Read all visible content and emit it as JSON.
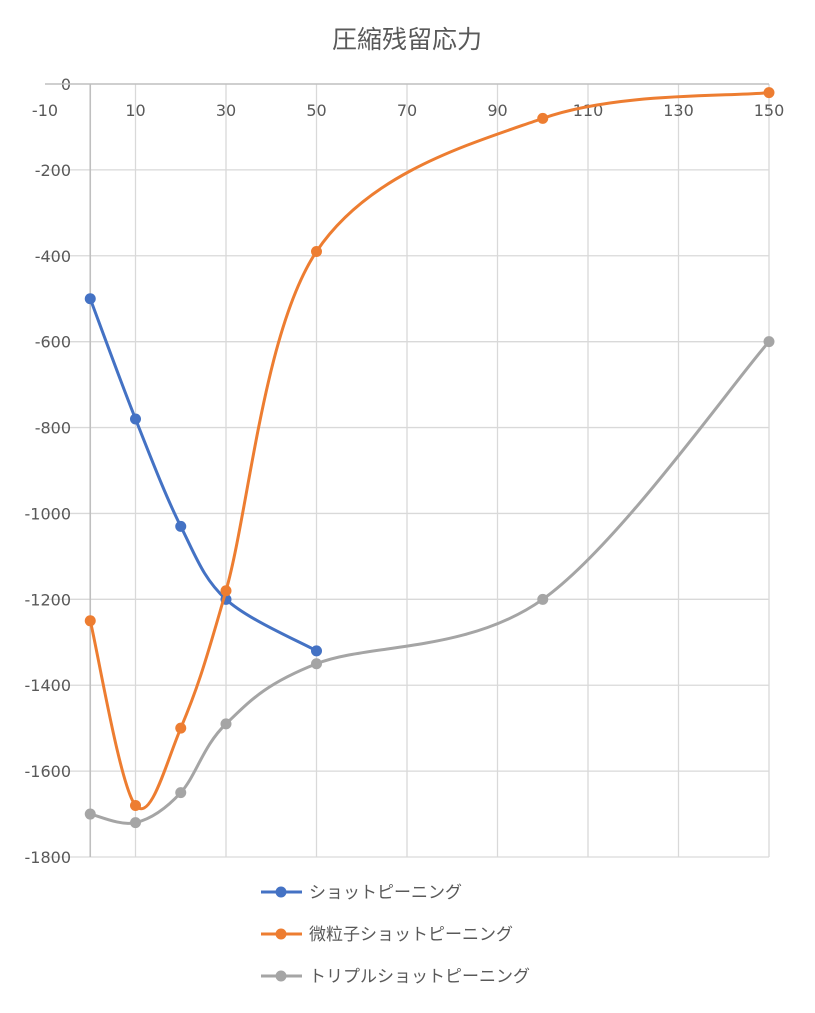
{
  "chart_data": {
    "type": "line",
    "title": "圧縮残留応力",
    "xlabel": "",
    "ylabel": "",
    "x_ticks": [
      -10,
      10,
      30,
      50,
      70,
      90,
      110,
      130,
      150
    ],
    "xlim": [
      -10,
      150
    ],
    "y_ticks": [
      0,
      -200,
      -400,
      -600,
      -800,
      -1000,
      -1200,
      -1400,
      -1600,
      -1800
    ],
    "ylim": [
      -1800,
      0
    ],
    "grid": true,
    "smooth": true,
    "legend_position": "bottom",
    "series": [
      {
        "name": "ショットピーニング",
        "color": "#4472c4",
        "x": [
          0,
          10,
          20,
          30,
          50
        ],
        "y": [
          -500,
          -780,
          -1030,
          -1200,
          -1320
        ]
      },
      {
        "name": "微粒子ショットピーニング",
        "color": "#ed7d31",
        "x": [
          0,
          10,
          20,
          30,
          50,
          100,
          150
        ],
        "y": [
          -1250,
          -1680,
          -1500,
          -1180,
          -390,
          -80,
          -20
        ]
      },
      {
        "name": "トリプルショットピーニング",
        "color": "#a5a5a5",
        "x": [
          0,
          10,
          20,
          30,
          50,
          100,
          150
        ],
        "y": [
          -1700,
          -1720,
          -1650,
          -1490,
          -1350,
          -1200,
          -600
        ]
      }
    ]
  }
}
